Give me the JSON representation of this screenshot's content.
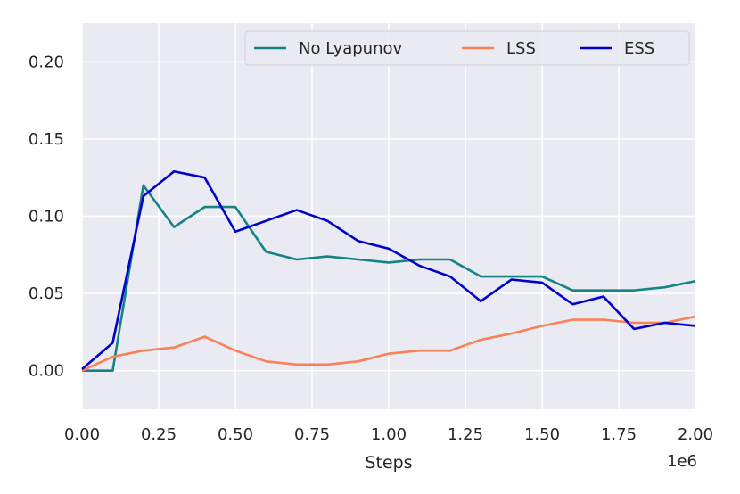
{
  "chart_data": {
    "type": "line",
    "title": "",
    "xlabel": "Steps",
    "ylabel": "",
    "x_offset_label": "1e6",
    "xlim": [
      0,
      2000000
    ],
    "ylim": [
      -0.025,
      0.225
    ],
    "x_ticks": [
      0,
      250000,
      500000,
      750000,
      1000000,
      1250000,
      1500000,
      1750000,
      2000000
    ],
    "x_tick_labels": [
      "0.00",
      "0.25",
      "0.50",
      "0.75",
      "1.00",
      "1.25",
      "1.50",
      "1.75",
      "2.00"
    ],
    "y_ticks": [
      0,
      0.05,
      0.1,
      0.15,
      0.2
    ],
    "y_tick_labels": [
      "0.00",
      "0.05",
      "0.10",
      "0.15",
      "0.20"
    ],
    "grid": true,
    "legend_placement": "top-right",
    "x": [
      0,
      100000,
      200000,
      300000,
      400000,
      500000,
      600000,
      700000,
      800000,
      900000,
      1000000,
      1100000,
      1200000,
      1300000,
      1400000,
      1500000,
      1600000,
      1700000,
      1800000,
      1900000,
      2000000
    ],
    "series": [
      {
        "name": "No Lyapunov",
        "color": "#138384",
        "values": [
          0.0,
          0.0,
          0.12,
          0.093,
          0.106,
          0.106,
          0.077,
          0.072,
          0.074,
          0.072,
          0.07,
          0.072,
          0.072,
          0.061,
          0.061,
          0.061,
          0.052,
          0.052,
          0.052,
          0.054,
          0.058
        ]
      },
      {
        "name": "LSS",
        "color": "#fa8057",
        "values": [
          0.0,
          0.009,
          0.013,
          0.015,
          0.022,
          0.013,
          0.006,
          0.004,
          0.004,
          0.006,
          0.011,
          0.013,
          0.013,
          0.02,
          0.024,
          0.029,
          0.033,
          0.033,
          0.031,
          0.031,
          0.035
        ]
      },
      {
        "name": "ESS",
        "color": "#0000cc",
        "values": [
          0.001,
          0.018,
          0.113,
          0.129,
          0.125,
          0.09,
          0.097,
          0.104,
          0.097,
          0.084,
          0.079,
          0.068,
          0.061,
          0.045,
          0.059,
          0.057,
          0.043,
          0.048,
          0.027,
          0.031,
          0.029
        ]
      }
    ]
  }
}
